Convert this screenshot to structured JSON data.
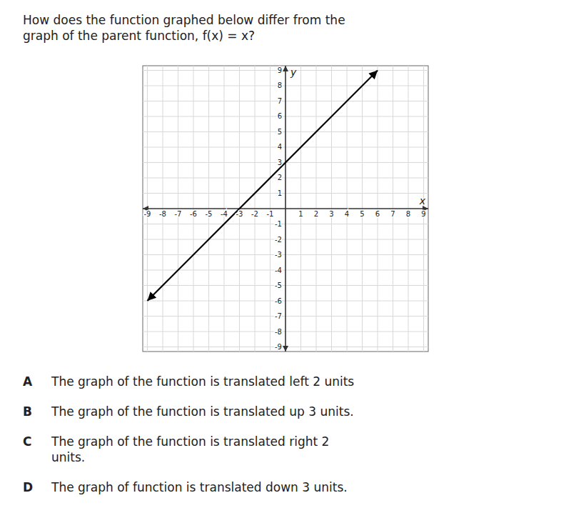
{
  "chart_data": {
    "type": "line",
    "title": "How does the function graphed below differ from the\ngraph of the parent function, f(x) = x?",
    "x_label": "x",
    "y_label": "y",
    "x": [
      -9,
      6
    ],
    "series": [
      {
        "values": [
          -6,
          9
        ],
        "color": "#000000"
      }
    ],
    "xlim": [
      -9.3,
      9.3
    ],
    "ylim": [
      -9.3,
      9.3
    ],
    "xticks": [
      -9,
      -8,
      -7,
      -6,
      -5,
      -4,
      -3,
      -2,
      -1,
      1,
      2,
      3,
      4,
      5,
      6,
      7,
      8,
      9
    ],
    "yticks": [
      -9,
      -8,
      -7,
      -6,
      -5,
      -4,
      -3,
      -2,
      -1,
      1,
      2,
      3,
      4,
      5,
      6,
      7,
      8,
      9
    ],
    "grid": true,
    "annotations": [
      {
        "label": "A",
        "text": "The graph of the function is translated left 2 units"
      },
      {
        "label": "B",
        "text": "The graph of the function is translated up 3 units."
      },
      {
        "label": "C",
        "text": "The graph of the function is translated right 2\nunits."
      },
      {
        "label": "D",
        "text": "The graph of function is translated down 3 units."
      }
    ]
  }
}
